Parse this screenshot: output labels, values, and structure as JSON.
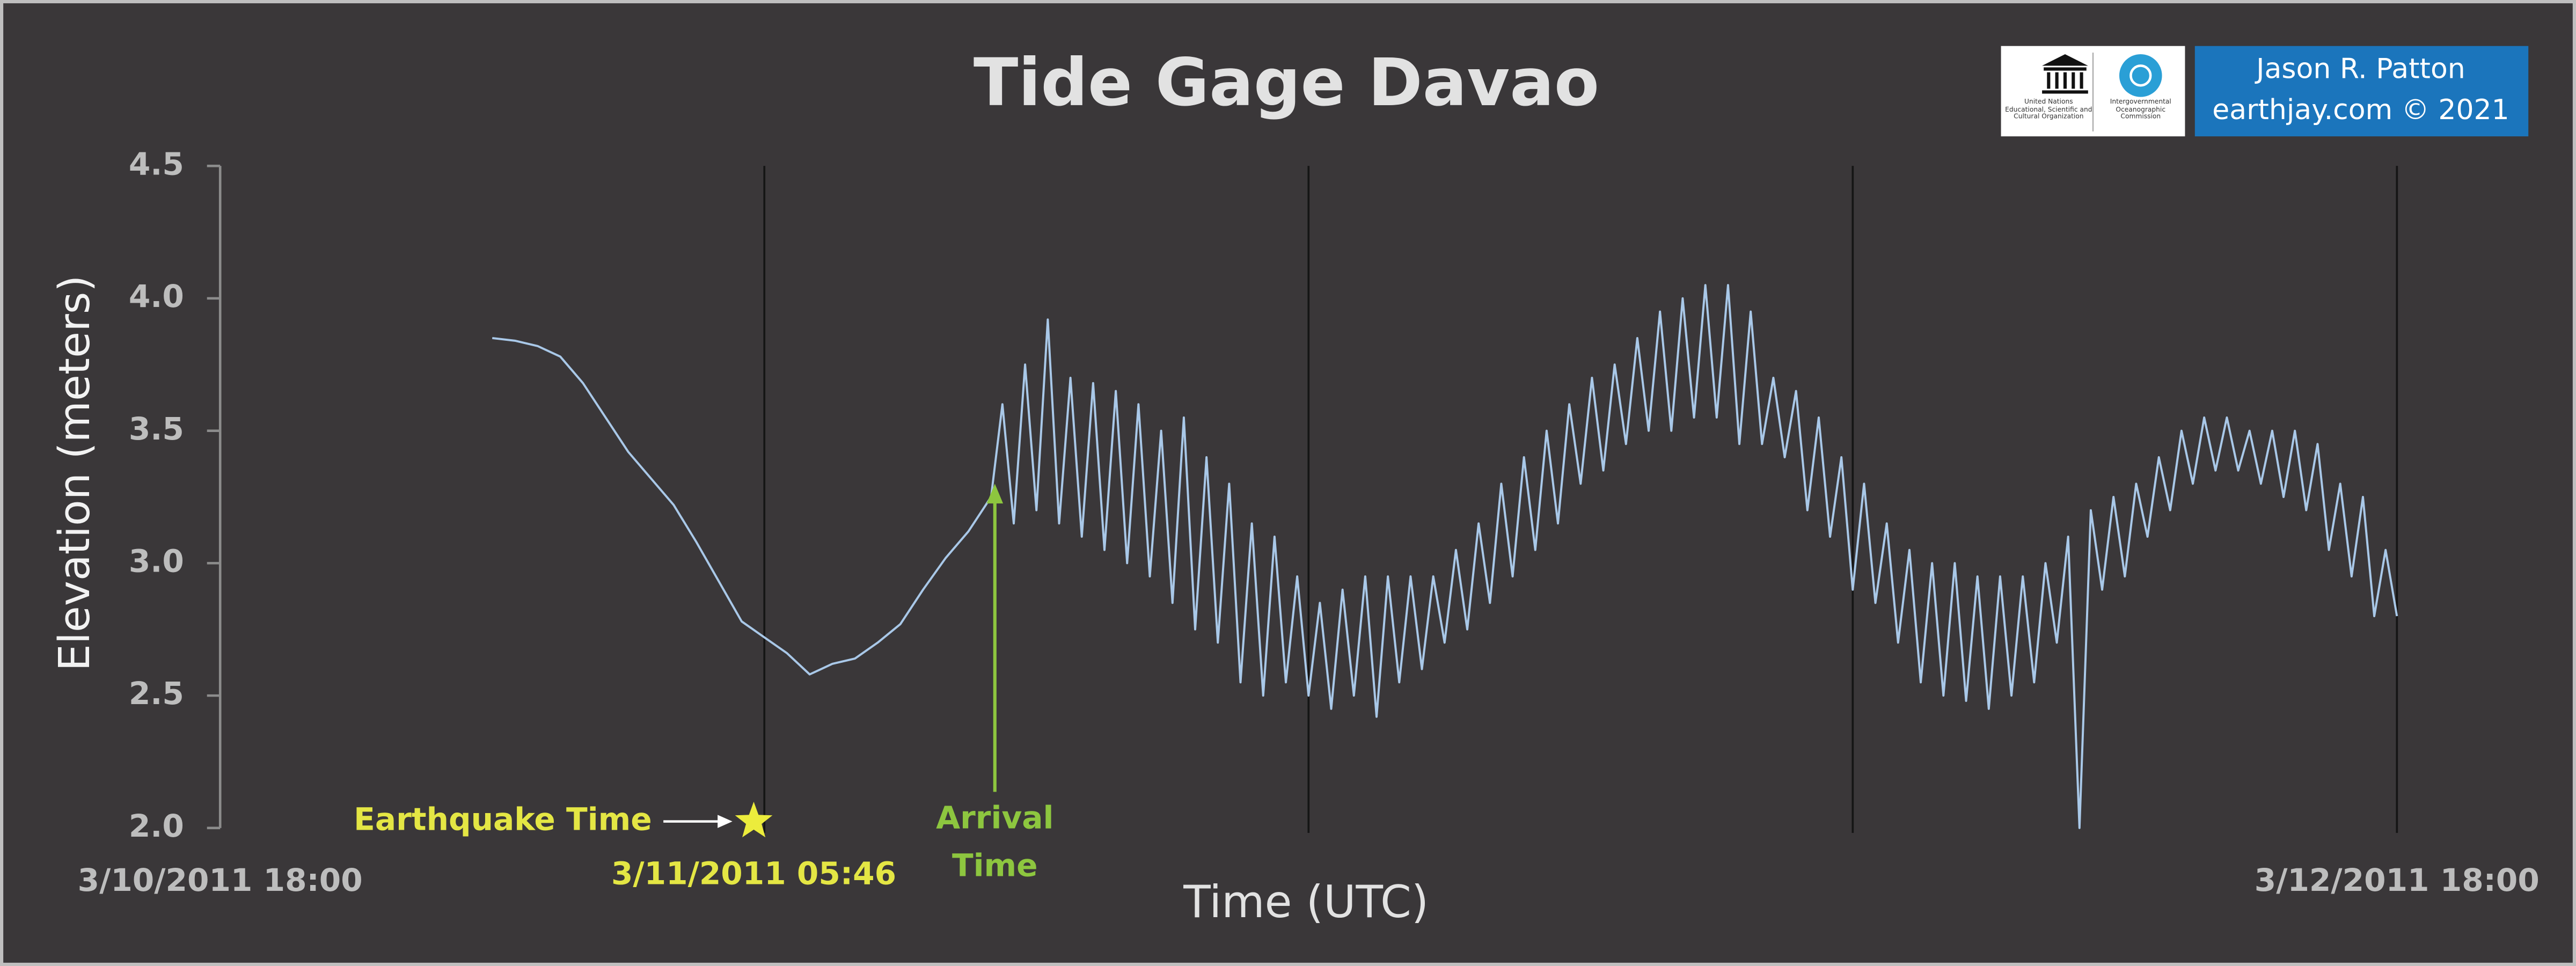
{
  "chart_data": {
    "type": "line",
    "title": "Tide Gage Davao",
    "x_label": "Time (UTC)",
    "y_label": "Elevation (meters)",
    "xlim": [
      "3/10/2011 18:00",
      "3/12/2011 18:00"
    ],
    "xticks": [
      "3/10/2011 18:00",
      "3/12/2011 18:00"
    ],
    "xgrid": [
      "3/11/2011 06:00",
      "3/11/2011 18:00",
      "3/12/2011 06:00",
      "3/12/2011 18:00"
    ],
    "ylim": [
      2.0,
      4.5
    ],
    "yticks": [
      {
        "value": 2,
        "label": "2.0"
      },
      2.5,
      {
        "value": 3,
        "label": "3.0"
      },
      3.5,
      {
        "value": 4,
        "label": "4.0"
      },
      4.5
    ],
    "earthquake": {
      "label": "Earthquake Time",
      "time": "3/11/2011 05:46"
    },
    "arrival": {
      "label": "Arrival Time",
      "time": "3/11/2011 11:05",
      "value": 3.3
    },
    "credit": [
      "Jason R. Patton",
      "earthjay.com © 2021"
    ],
    "logos": [
      "United Nations Educational, Scientific and Cultural Organization",
      "Intergovernmental Oceanographic Commission"
    ],
    "series": [
      {
        "color": "#a9c8e8",
        "x": [
          "3/11/2011 00:00",
          "3/11/2011 00:30",
          "3/11/2011 01:00",
          "3/11/2011 01:30",
          "3/11/2011 02:00",
          "3/11/2011 02:30",
          "3/11/2011 03:00",
          "3/11/2011 03:30",
          "3/11/2011 04:00",
          "3/11/2011 04:30",
          "3/11/2011 05:00",
          "3/11/2011 05:30",
          "3/11/2011 06:00",
          "3/11/2011 06:30",
          "3/11/2011 07:00",
          "3/11/2011 07:30",
          "3/11/2011 08:00",
          "3/11/2011 08:30",
          "3/11/2011 09:00",
          "3/11/2011 09:30",
          "3/11/2011 10:00",
          "3/11/2011 10:30",
          "3/11/2011 11:00",
          "3/11/2011 11:15",
          "3/11/2011 11:30",
          "3/11/2011 11:45",
          "3/11/2011 12:00",
          "3/11/2011 12:15",
          "3/11/2011 12:30",
          "3/11/2011 12:45",
          "3/11/2011 13:00",
          "3/11/2011 13:15",
          "3/11/2011 13:30",
          "3/11/2011 13:45",
          "3/11/2011 14:00",
          "3/11/2011 14:15",
          "3/11/2011 14:30",
          "3/11/2011 14:45",
          "3/11/2011 15:00",
          "3/11/2011 15:15",
          "3/11/2011 15:30",
          "3/11/2011 15:45",
          "3/11/2011 16:00",
          "3/11/2011 16:15",
          "3/11/2011 16:30",
          "3/11/2011 16:45",
          "3/11/2011 17:00",
          "3/11/2011 17:15",
          "3/11/2011 17:30",
          "3/11/2011 17:45",
          "3/11/2011 18:00",
          "3/11/2011 18:15",
          "3/11/2011 18:30",
          "3/11/2011 18:45",
          "3/11/2011 19:00",
          "3/11/2011 19:15",
          "3/11/2011 19:30",
          "3/11/2011 19:45",
          "3/11/2011 20:00",
          "3/11/2011 20:15",
          "3/11/2011 20:30",
          "3/11/2011 20:45",
          "3/11/2011 21:00",
          "3/11/2011 21:15",
          "3/11/2011 21:30",
          "3/11/2011 21:45",
          "3/11/2011 22:00",
          "3/11/2011 22:15",
          "3/11/2011 22:30",
          "3/11/2011 22:45",
          "3/11/2011 23:00",
          "3/11/2011 23:15",
          "3/11/2011 23:30",
          "3/11/2011 23:45",
          "3/12/2011 00:00",
          "3/12/2011 00:15",
          "3/12/2011 00:30",
          "3/12/2011 00:45",
          "3/12/2011 01:00",
          "3/12/2011 01:15",
          "3/12/2011 01:30",
          "3/12/2011 01:45",
          "3/12/2011 02:00",
          "3/12/2011 02:15",
          "3/12/2011 02:30",
          "3/12/2011 02:45",
          "3/12/2011 03:00",
          "3/12/2011 03:15",
          "3/12/2011 03:30",
          "3/12/2011 03:45",
          "3/12/2011 04:00",
          "3/12/2011 04:15",
          "3/12/2011 04:30",
          "3/12/2011 04:45",
          "3/12/2011 05:00",
          "3/12/2011 05:15",
          "3/12/2011 05:30",
          "3/12/2011 05:45",
          "3/12/2011 06:00",
          "3/12/2011 06:15",
          "3/12/2011 06:30",
          "3/12/2011 06:45",
          "3/12/2011 07:00",
          "3/12/2011 07:15",
          "3/12/2011 07:30",
          "3/12/2011 07:45",
          "3/12/2011 08:00",
          "3/12/2011 08:15",
          "3/12/2011 08:30",
          "3/12/2011 08:45",
          "3/12/2011 09:00",
          "3/12/2011 09:15",
          "3/12/2011 09:30",
          "3/12/2011 09:45",
          "3/12/2011 10:00",
          "3/12/2011 10:15",
          "3/12/2011 10:30",
          "3/12/2011 10:45",
          "3/12/2011 11:00",
          "3/12/2011 11:15",
          "3/12/2011 11:30",
          "3/12/2011 11:45",
          "3/12/2011 12:00",
          "3/12/2011 12:15",
          "3/12/2011 12:30",
          "3/12/2011 12:45",
          "3/12/2011 13:00",
          "3/12/2011 13:15",
          "3/12/2011 13:30",
          "3/12/2011 13:45",
          "3/12/2011 14:00",
          "3/12/2011 14:15",
          "3/12/2011 14:30",
          "3/12/2011 14:45",
          "3/12/2011 15:00",
          "3/12/2011 15:15",
          "3/12/2011 15:30",
          "3/12/2011 15:45",
          "3/12/2011 16:00",
          "3/12/2011 16:15",
          "3/12/2011 16:30",
          "3/12/2011 16:45",
          "3/12/2011 17:00",
          "3/12/2011 17:15",
          "3/12/2011 17:30",
          "3/12/2011 17:45",
          "3/12/2011 18:00"
        ],
        "values": [
          3.85,
          3.84,
          3.82,
          3.78,
          3.68,
          3.55,
          3.42,
          3.32,
          3.22,
          3.08,
          2.93,
          2.78,
          2.72,
          2.66,
          2.58,
          2.62,
          2.64,
          2.7,
          2.77,
          2.9,
          3.02,
          3.12,
          3.25,
          3.6,
          3.15,
          3.75,
          3.2,
          3.92,
          3.15,
          3.7,
          3.1,
          3.68,
          3.05,
          3.65,
          3.0,
          3.6,
          2.95,
          3.5,
          2.85,
          3.55,
          2.75,
          3.4,
          2.7,
          3.3,
          2.55,
          3.15,
          2.5,
          3.1,
          2.55,
          2.95,
          2.5,
          2.85,
          2.45,
          2.9,
          2.5,
          2.95,
          2.42,
          2.95,
          2.55,
          2.95,
          2.6,
          2.95,
          2.7,
          3.05,
          2.75,
          3.15,
          2.85,
          3.3,
          2.95,
          3.4,
          3.05,
          3.5,
          3.15,
          3.6,
          3.3,
          3.7,
          3.35,
          3.75,
          3.45,
          3.85,
          3.5,
          3.95,
          3.5,
          4.0,
          3.55,
          4.05,
          3.55,
          4.05,
          3.45,
          3.95,
          3.45,
          3.7,
          3.4,
          3.65,
          3.2,
          3.55,
          3.1,
          3.4,
          2.9,
          3.3,
          2.85,
          3.15,
          2.7,
          3.05,
          2.55,
          3.0,
          2.5,
          3.0,
          2.48,
          2.95,
          2.45,
          2.95,
          2.5,
          2.95,
          2.55,
          3.0,
          2.7,
          3.1,
          2.0,
          3.2,
          2.9,
          3.25,
          2.95,
          3.3,
          3.1,
          3.4,
          3.2,
          3.5,
          3.3,
          3.55,
          3.35,
          3.55,
          3.35,
          3.5,
          3.3,
          3.5,
          3.25,
          3.5,
          3.2,
          3.45,
          3.05,
          3.3,
          2.95,
          3.25,
          2.8,
          3.05,
          2.8
        ]
      }
    ]
  }
}
